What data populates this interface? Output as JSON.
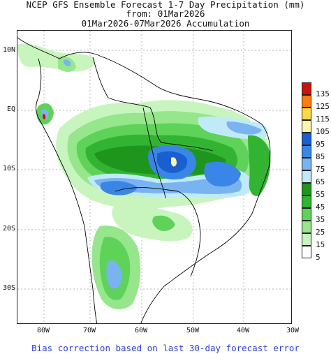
{
  "title": {
    "line1": "NCEP GFS Ensemble Forecast 1-7 Day Precipitation (mm)",
    "line2": "from: 01Mar2026",
    "line3": "01Mar2026-07Mar2026 Accumulation"
  },
  "lat_labels": [
    "10N",
    "EQ",
    "10S",
    "20S",
    "30S"
  ],
  "lon_labels": [
    "80W",
    "70W",
    "60W",
    "50W",
    "40W",
    "30W"
  ],
  "legend": {
    "labels": [
      "135",
      "125",
      "115",
      "105",
      "95",
      "85",
      "75",
      "65",
      "55",
      "45",
      "35",
      "25",
      "15",
      "5"
    ],
    "colors": [
      "#c8140a",
      "#ff7b10",
      "#ffd84a",
      "#fff6b0",
      "#1a5fd0",
      "#3a86e6",
      "#7ab4f0",
      "#c0eaf8",
      "#1e961e",
      "#32b432",
      "#5fd25a",
      "#96e68c",
      "#c8f5be",
      "#ffffff"
    ]
  },
  "footer": "Bias correction based on last 30-day forecast error"
}
